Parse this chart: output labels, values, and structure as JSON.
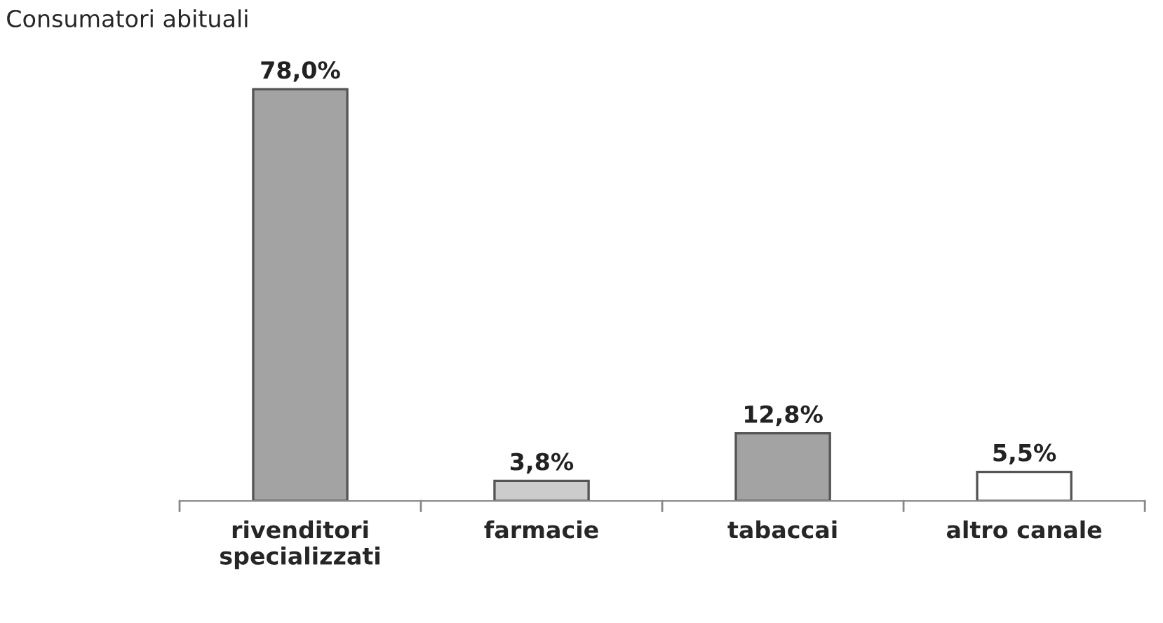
{
  "chart_data": {
    "type": "bar",
    "title": "Consumatori abituali",
    "categories": [
      "rivenditori\nspecializzati",
      "farmacie",
      "tabaccai",
      "altro canale"
    ],
    "values": [
      78.0,
      3.8,
      12.8,
      5.5
    ],
    "colors": [
      "#a3a3a3",
      "#cccccc",
      "#a3a3a3",
      "#ffffff"
    ],
    "value_labels": [
      "78,0%",
      "3,8%",
      "12,8%",
      "5,5%"
    ],
    "grid": false,
    "legend": false
  }
}
